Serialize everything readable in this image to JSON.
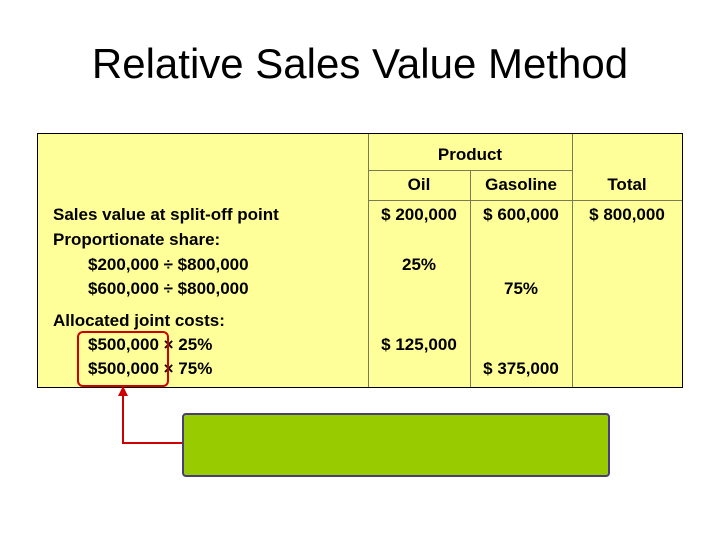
{
  "slide": {
    "title": "Relative Sales Value Method"
  },
  "table": {
    "header_group": "Product",
    "col_oil": "Oil",
    "col_gasoline": "Gasoline",
    "col_total": "Total",
    "rows": {
      "sales_label": "Sales value at split-off point",
      "sales_oil": "$ 200,000",
      "sales_gas": "$ 600,000",
      "sales_total": "$ 800,000",
      "prop_label": "Proportionate share:",
      "prop_line1": "$200,000 ÷ $800,000",
      "prop_line2": "$600,000 ÷ $800,000",
      "prop_oil": "25%",
      "prop_gas": "75%",
      "alloc_label": "Allocated joint costs:",
      "alloc_line1": "$500,000 × 25%",
      "alloc_line2": "$500,000 × 75%",
      "alloc_oil": "$ 125,000",
      "alloc_gas": "$ 375,000"
    }
  },
  "colors": {
    "table_bg": "#ffff99",
    "callout_bg": "#99cc00",
    "highlight": "#cc0000"
  }
}
